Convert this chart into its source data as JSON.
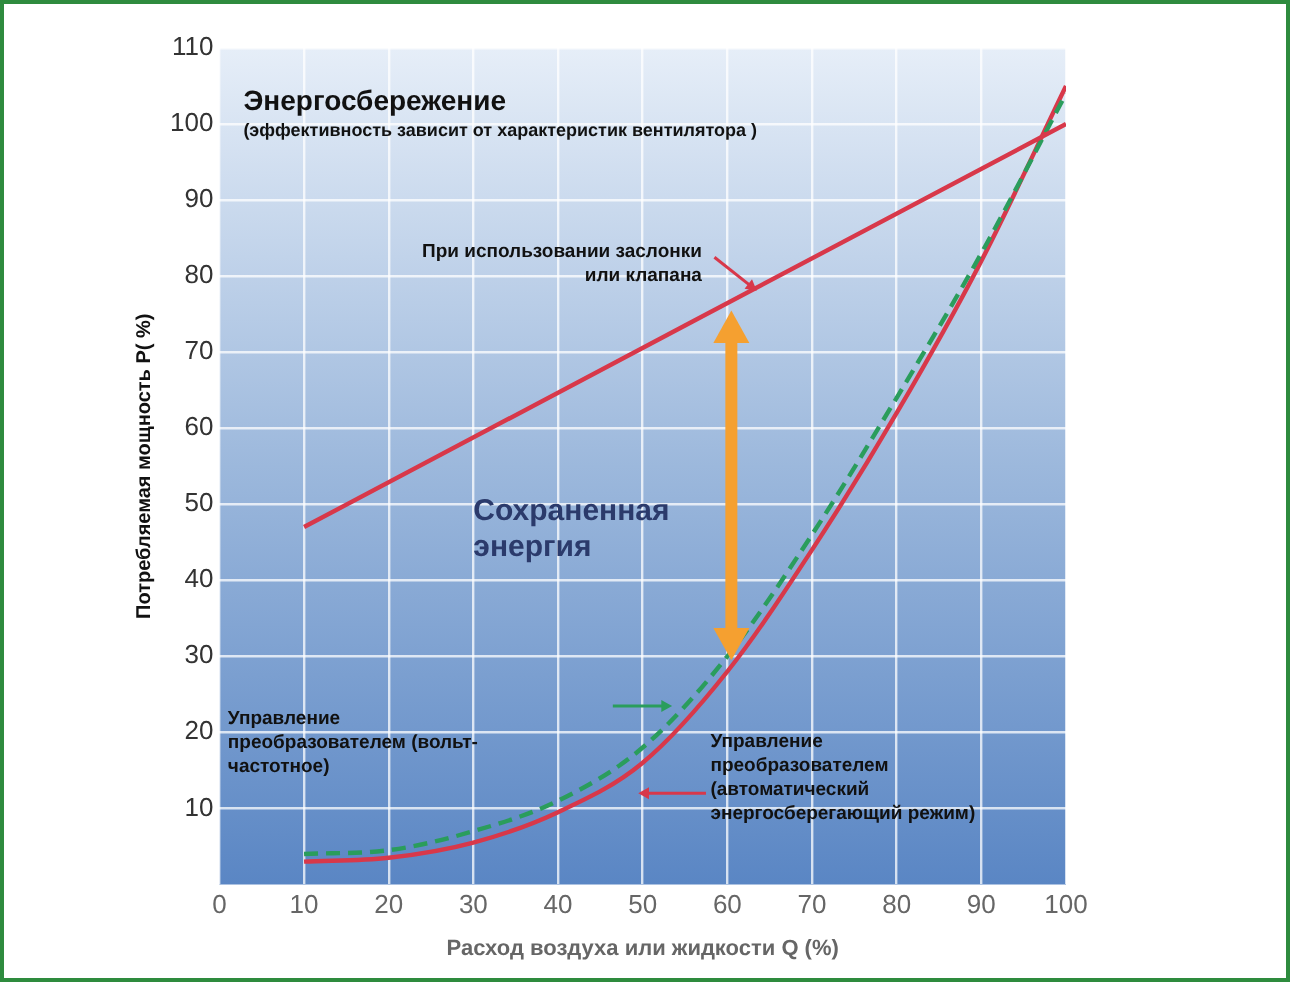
{
  "chart_data": {
    "type": "line",
    "title": "Энергосбережение",
    "subtitle": "(эффективность зависит от характеристик вентилятора )",
    "xlabel": "Расход воздуха или жидкости Q (%)",
    "ylabel": "Потребляемая мощность P( %)",
    "xlim": [
      0,
      100
    ],
    "xticks": [
      0,
      10,
      20,
      30,
      40,
      50,
      60,
      70,
      80,
      90,
      100
    ],
    "ylim": [
      0,
      110
    ],
    "yticks": [
      10,
      20,
      30,
      40,
      50,
      60,
      70,
      80,
      90,
      100,
      110
    ],
    "grid": true,
    "marker": "none",
    "annotations": [
      "Сохраненная\nэнергия"
    ],
    "series": [
      {
        "name": "При использовании заслонки\nили клапана",
        "color": "#d8384a",
        "x": [
          10,
          100
        ],
        "values": [
          47,
          100
        ]
      },
      {
        "name": "Управление\nпреобразователем (вольт-\nчастотное)",
        "color": "#2a9d5c",
        "line_style": "dashed",
        "x": [
          10,
          20,
          30,
          40,
          50,
          60,
          70,
          80,
          90,
          100
        ],
        "values": [
          4,
          4.5,
          7,
          11,
          18,
          30,
          46,
          64,
          83,
          104
        ]
      },
      {
        "name": "Управление\nпреобразователем\n(автоматический\nэнергосберегающий режим)",
        "color": "#d8384a",
        "x": [
          10,
          20,
          30,
          40,
          50,
          60,
          70,
          80,
          90,
          100
        ],
        "values": [
          3,
          3.5,
          5.5,
          9.5,
          16,
          28,
          44,
          62,
          82,
          105
        ]
      }
    ]
  }
}
